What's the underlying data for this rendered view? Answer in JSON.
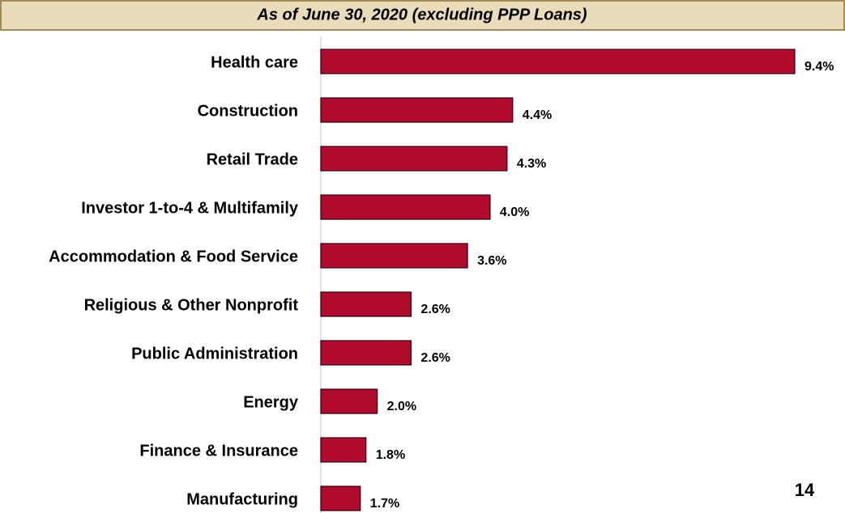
{
  "chart_data": {
    "type": "bar",
    "orientation": "horizontal",
    "subtitle": "As of June 30, 2020 (excluding PPP Loans)",
    "categories": [
      "Health care",
      "Construction",
      "Retail Trade",
      "Investor 1-to-4 & Multifamily",
      "Accommodation & Food Service",
      "Religious & Other Nonprofit",
      "Public Administration",
      "Energy",
      "Finance & Insurance",
      "Manufacturing"
    ],
    "values": [
      9.4,
      4.4,
      4.3,
      4.0,
      3.6,
      2.6,
      2.6,
      2.0,
      1.8,
      1.7
    ],
    "value_labels": [
      "9.4%",
      "4.4%",
      "4.3%",
      "4.0%",
      "3.6%",
      "2.6%",
      "2.6%",
      "2.0%",
      "1.8%",
      "1.7%"
    ],
    "color": "#b00b2c",
    "xlim": [
      1,
      9.4
    ]
  },
  "page_number": "14"
}
